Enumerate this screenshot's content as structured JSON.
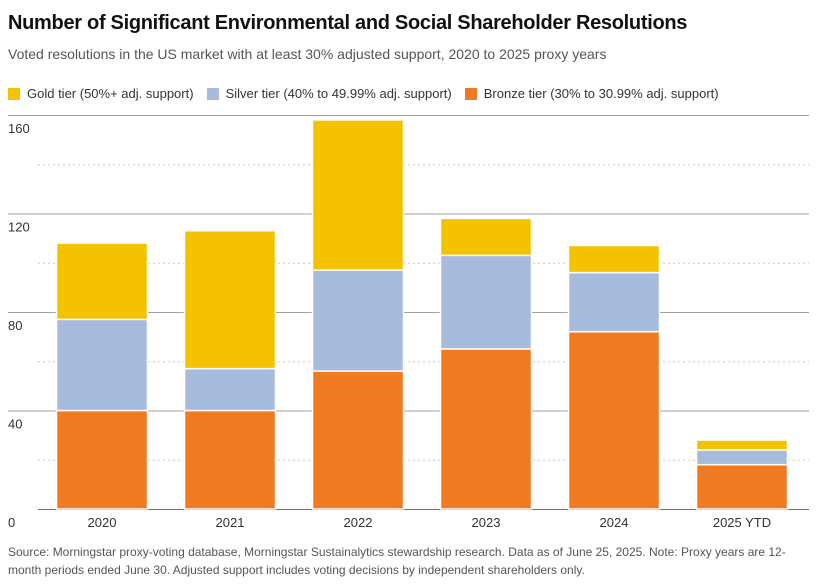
{
  "chart_data": {
    "type": "bar",
    "stacked": true,
    "title": "Number of Significant Environmental and Social Shareholder Resolutions",
    "subtitle": "Voted resolutions in the US market with at least 30% adjusted support, 2020 to 2025 proxy years",
    "categories": [
      "2020",
      "2021",
      "2022",
      "2023",
      "2024",
      "2025 YTD"
    ],
    "series": [
      {
        "name": "Bronze tier (30% to 30.99% adj. support)",
        "color": "#f07a22",
        "values": [
          40,
          40,
          56,
          65,
          72,
          18
        ]
      },
      {
        "name": "Silver tier (40% to 49.99% adj. support)",
        "color": "#a7bbdd",
        "values": [
          37,
          17,
          41,
          38,
          24,
          6
        ]
      },
      {
        "name": "Gold tier (50%+ adj. support)",
        "color": "#f4c200",
        "values": [
          31,
          56,
          61,
          15,
          11,
          4
        ]
      }
    ],
    "legend_order": [
      2,
      1,
      0
    ],
    "ylim": [
      0,
      160
    ],
    "yticks": [
      0,
      40,
      80,
      120,
      160
    ],
    "grid": true,
    "legend_position": "top-left",
    "source": "Source: Morningstar proxy-voting database, Morningstar Sustainalytics stewardship research. Data as of June 25, 2025. Note: Proxy years are 12-month periods ended June 30. Adjusted support includes voting decisions by independent shareholders only."
  }
}
